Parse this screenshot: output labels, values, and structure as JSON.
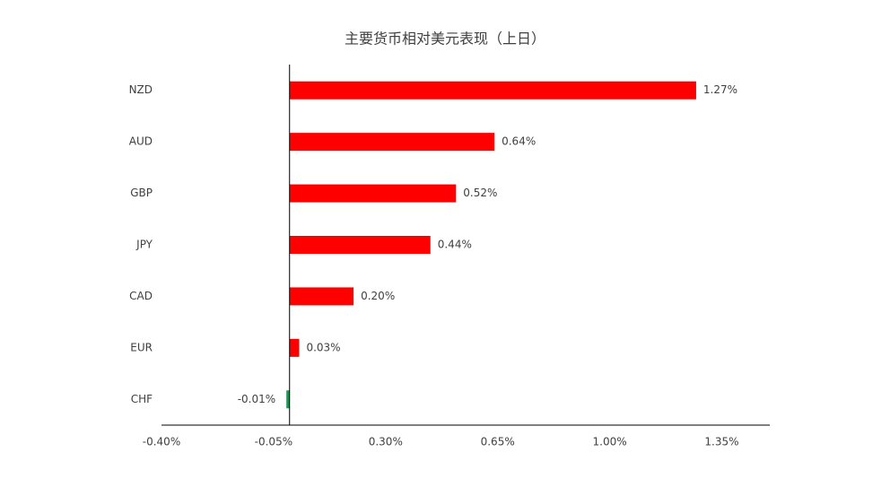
{
  "chart_data": {
    "type": "hbar",
    "title": "主要货币相对美元表现（上日）",
    "categories": [
      "NZD",
      "AUD",
      "GBP",
      "JPY",
      "CAD",
      "EUR",
      "CHF"
    ],
    "values": [
      1.27,
      0.64,
      0.52,
      0.44,
      0.2,
      0.03,
      -0.01
    ],
    "value_labels": [
      "1.27%",
      "0.64%",
      "0.52%",
      "0.44%",
      "0.20%",
      "0.03%",
      "-0.01%"
    ],
    "colors": [
      "#ff0000",
      "#ff0000",
      "#ff0000",
      "#ff0000",
      "#ff0000",
      "#ff0000",
      "#00a651"
    ],
    "xlim": [
      -0.4,
      1.5
    ],
    "xticks": [
      {
        "value": -0.4,
        "label": "-0.40%"
      },
      {
        "value": -0.05,
        "label": "-0.05%"
      },
      {
        "value": 0.3,
        "label": "0.30%"
      },
      {
        "value": 0.65,
        "label": "0.65%"
      },
      {
        "value": 1.0,
        "label": "1.00%"
      },
      {
        "value": 1.35,
        "label": "1.35%"
      }
    ],
    "grid": false
  }
}
